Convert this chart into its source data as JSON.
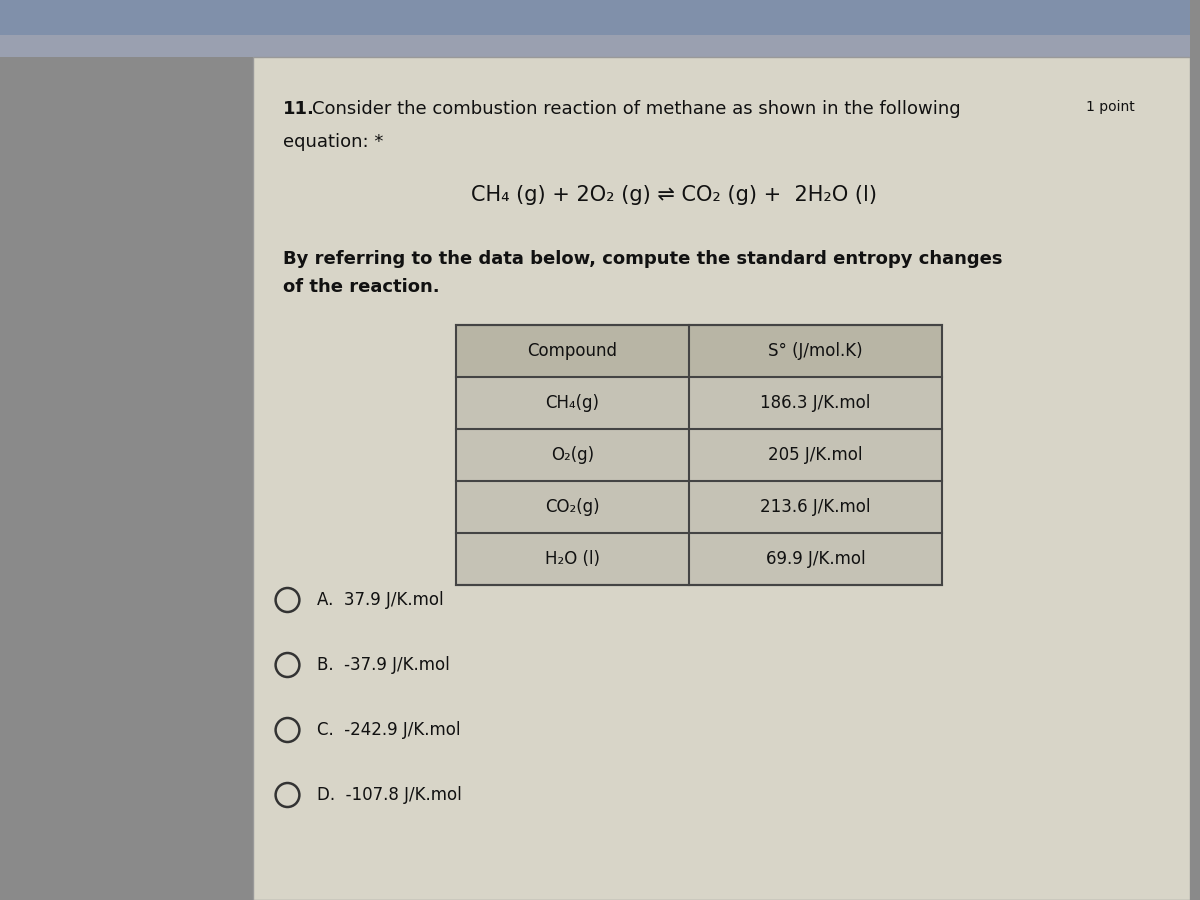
{
  "bg_outer": "#8a8a8a",
  "bg_top_bar": "#6a7a9a",
  "card_color": "#d8d5c8",
  "table_header_bg": "#b8b5a5",
  "table_row_bg": "#c5c2b5",
  "table_border_color": "#444444",
  "question_number": "11.",
  "question_main": "Consider the combustion reaction of methane as shown in the following",
  "question_points": "1 point",
  "question_sub": "equation: *",
  "equation": "CH₄ (g) + 2O₂ (g) ⇌ CO₂ (g) +  2H₂O (l)",
  "instruction_line1": "By referring to the data below, compute the standard entropy changes",
  "instruction_line2": "of the reaction.",
  "table_header": [
    "Compound",
    "S° (J/mol.K)"
  ],
  "table_rows": [
    [
      "CH₄(g)",
      "186.3 J/K.mol"
    ],
    [
      "O₂(g)",
      "205 J/K.mol"
    ],
    [
      "CO₂(g)",
      "213.6 J/K.mol"
    ],
    [
      "H₂O (l)",
      "69.9 J/K.mol"
    ]
  ],
  "choices": [
    "A.  37.9 J/K.mol",
    "B.  -37.9 J/K.mol",
    "C.  -242.9 J/K.mol",
    "D.  -107.8 J/K.mol"
  ],
  "figsize": [
    12,
    9
  ],
  "dpi": 100
}
